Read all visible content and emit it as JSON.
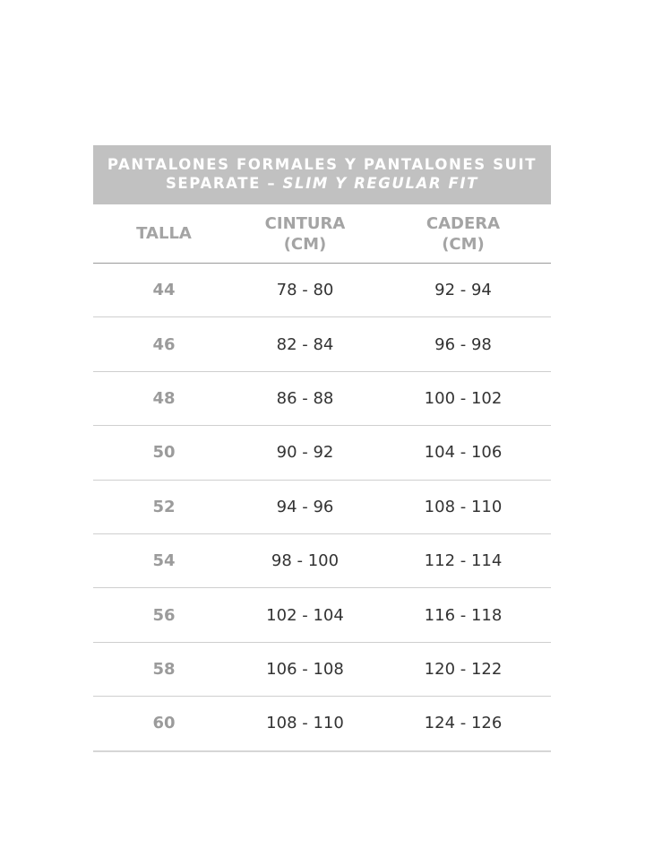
{
  "title": {
    "line1": "PANTALONES FORMALES Y PANTALONES SUIT",
    "line2_main": "SEPARATE – ",
    "line2_italic": "SLIM Y REGULAR FIT"
  },
  "columns": [
    {
      "label": "TALLA"
    },
    {
      "label": "CINTURA",
      "unit": "(CM)"
    },
    {
      "label": "CADERA",
      "unit": "(CM)"
    }
  ],
  "rows": [
    [
      "44",
      "78 - 80",
      "92 - 94"
    ],
    [
      "46",
      "82 - 84",
      "96 - 98"
    ],
    [
      "48",
      "86 - 88",
      "100 - 102"
    ],
    [
      "50",
      "90 - 92",
      "104 - 106"
    ],
    [
      "52",
      "94 - 96",
      "108 - 110"
    ],
    [
      "54",
      "98 - 100",
      "112 - 114"
    ],
    [
      "56",
      "102 - 104",
      "116 - 118"
    ],
    [
      "58",
      "106 - 108",
      "120 - 122"
    ],
    [
      "60",
      "108 - 110",
      "124 - 126"
    ]
  ]
}
